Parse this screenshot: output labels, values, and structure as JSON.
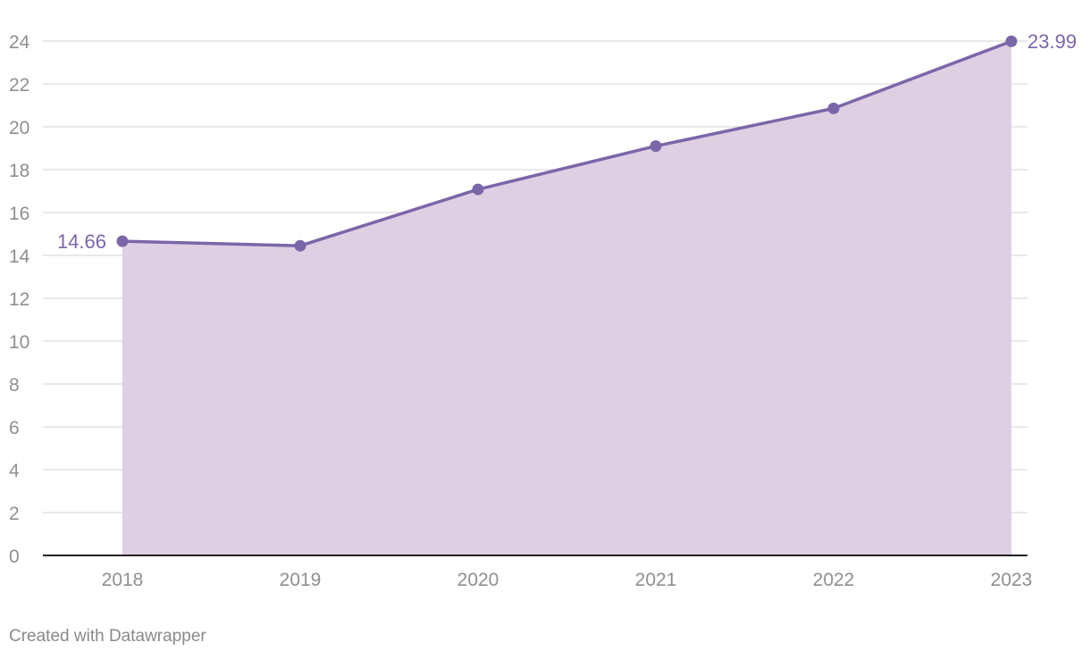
{
  "chart_data": {
    "type": "area",
    "x": [
      "2018",
      "2019",
      "2020",
      "2021",
      "2022",
      "2023"
    ],
    "values": [
      14.66,
      14.45,
      17.08,
      19.1,
      20.86,
      23.99
    ],
    "ylim": [
      0,
      24
    ],
    "yticks": [
      0,
      2,
      4,
      6,
      8,
      10,
      12,
      14,
      16,
      18,
      20,
      22,
      24
    ],
    "data_labels": [
      {
        "index": 0,
        "text": "14.66"
      },
      {
        "index": 5,
        "text": "23.99"
      }
    ],
    "grid": true,
    "colors": {
      "line": "#7b66a8",
      "fill": "#dfcfe3",
      "grid": "#e2e2e2",
      "axis": "#222222",
      "tick_text": "#8f8f8f"
    }
  },
  "footer": {
    "credit": "Created with Datawrapper"
  }
}
